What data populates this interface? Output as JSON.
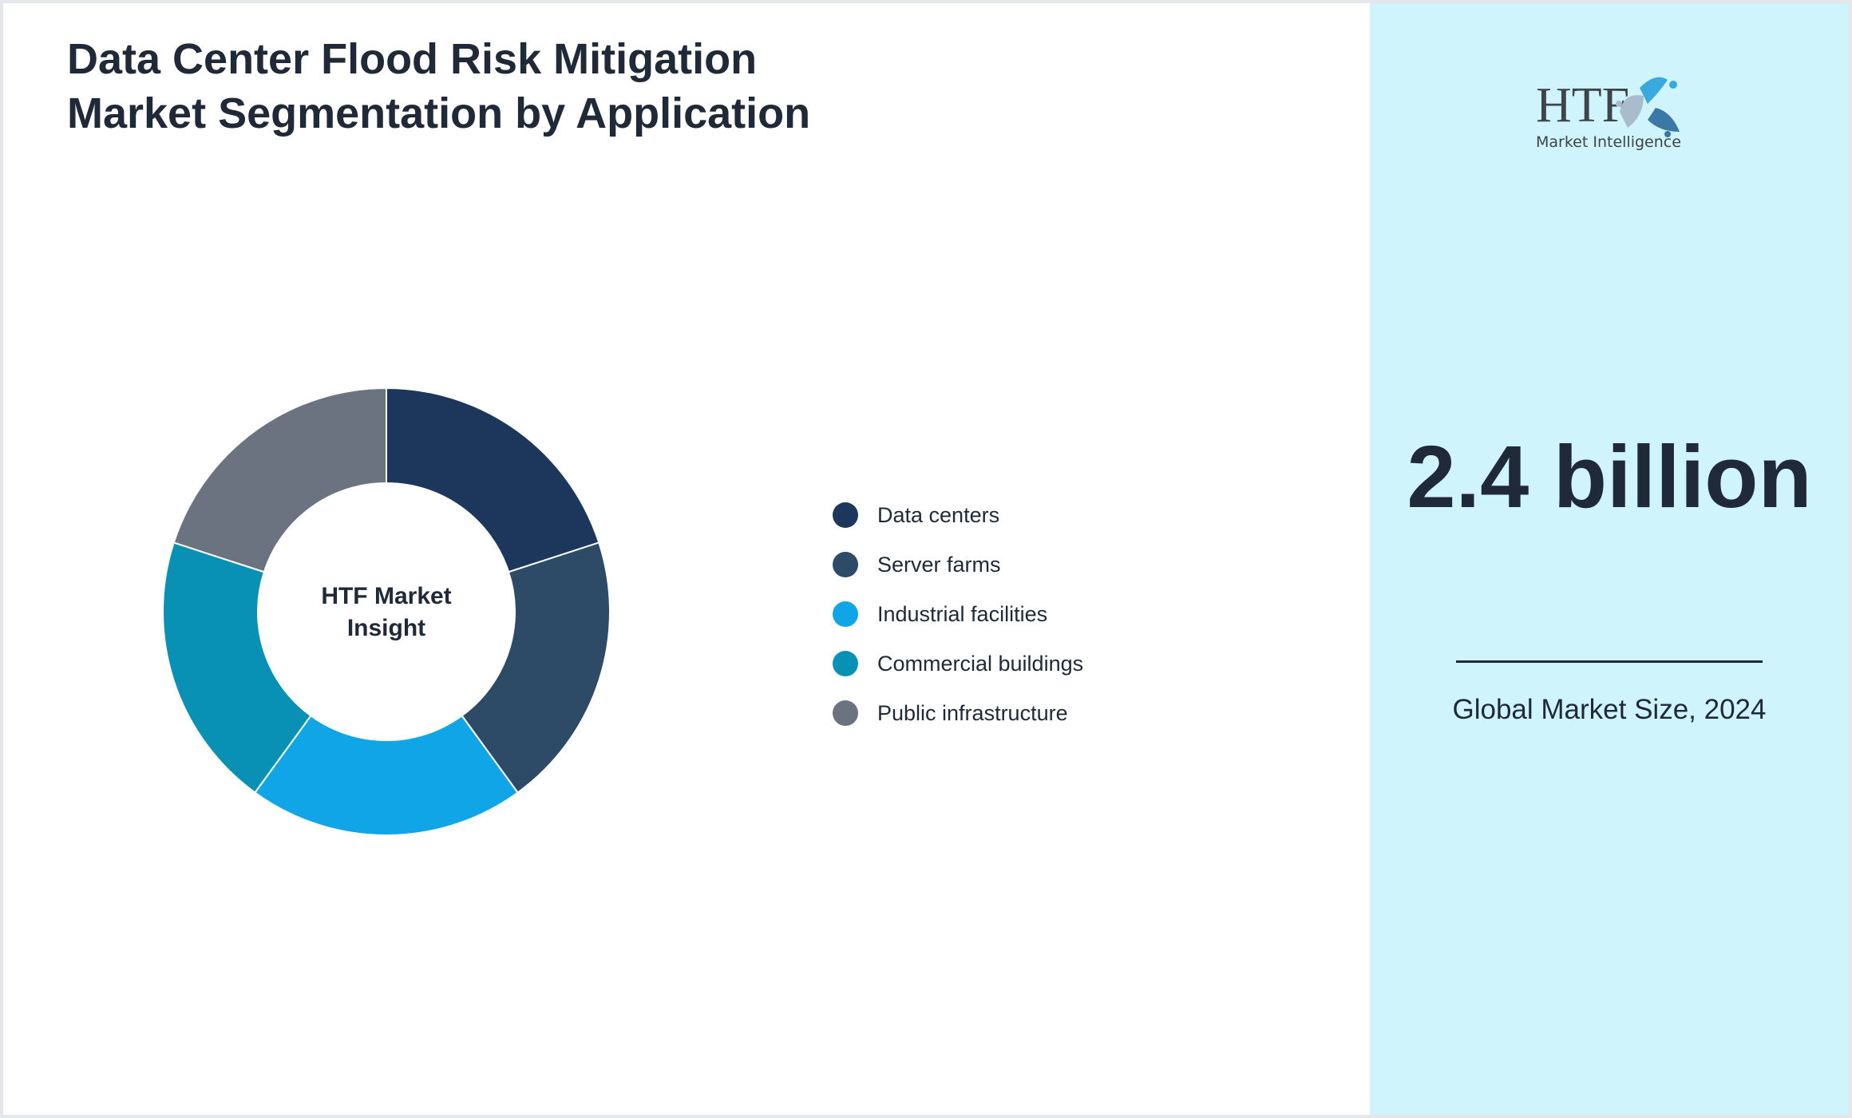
{
  "title": "Data Center Flood Risk Mitigation Market Segmentation by Application",
  "chart_data": {
    "type": "pie",
    "variant": "donut",
    "center_label": "HTF Market Insight",
    "categories": [
      "Data centers",
      "Server farms",
      "Industrial facilities",
      "Commercial buildings",
      "Public infrastructure"
    ],
    "values": [
      20,
      20,
      20,
      20,
      20
    ],
    "colors": [
      "#1c365c",
      "#2d4a66",
      "#10a5e6",
      "#0991b5",
      "#6b7280"
    ],
    "legend_position": "right"
  },
  "panel": {
    "logo_text": "HTF",
    "logo_subtext": "Market Intelligence",
    "value": "2.4 billion",
    "caption": "Global Market Size, 2024",
    "background": "#cff4fc"
  }
}
